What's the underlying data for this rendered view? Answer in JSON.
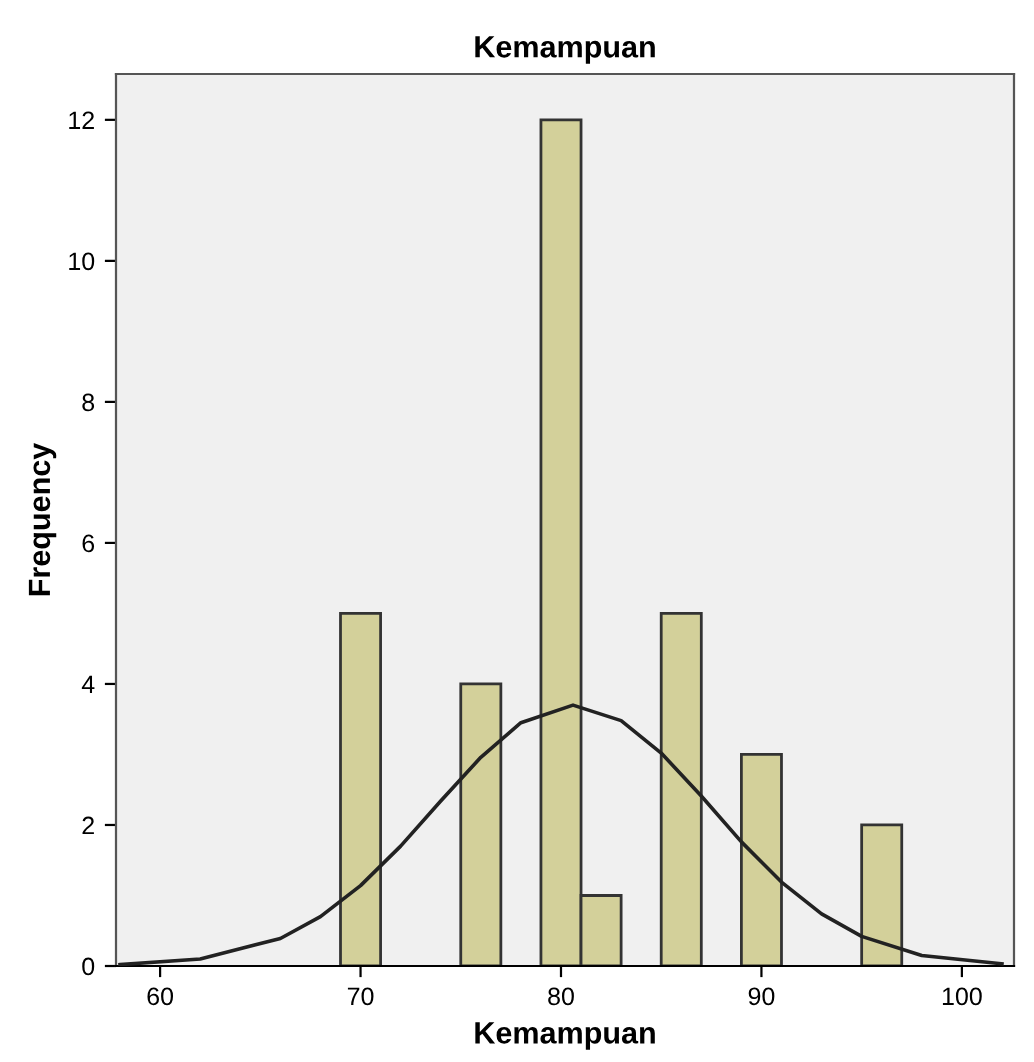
{
  "chart_data": {
    "type": "histogram",
    "title": "Kemampuan",
    "xlabel": "Kemampuan",
    "ylabel": "Frequency",
    "bins": [
      69,
      71,
      73,
      75,
      77,
      79,
      81,
      83,
      85,
      87,
      89,
      91,
      93,
      95,
      97
    ],
    "values": [
      5,
      0,
      0,
      4,
      0,
      12,
      1,
      0,
      5,
      0,
      3,
      0,
      0,
      2
    ],
    "color": "#d3d09a",
    "series": [
      {
        "type": "line",
        "color": "#222222",
        "x": [
          58,
          62,
          66,
          68,
          70,
          72,
          74,
          76,
          78,
          80.6,
          83,
          85,
          87,
          89,
          91,
          93,
          95,
          98,
          102
        ],
        "values": [
          0.02,
          0.1,
          0.39,
          0.7,
          1.14,
          1.7,
          2.34,
          2.96,
          3.45,
          3.7,
          3.48,
          3.02,
          2.41,
          1.76,
          1.19,
          0.74,
          0.42,
          0.15,
          0.03
        ]
      }
    ],
    "xlim": [
      57.8,
      102.6
    ],
    "xticks": [
      60,
      70,
      80,
      90,
      100
    ],
    "ylim": [
      0,
      12.65
    ],
    "yticks": [
      0,
      2,
      4,
      6,
      8,
      10,
      12
    ],
    "grid": false
  }
}
